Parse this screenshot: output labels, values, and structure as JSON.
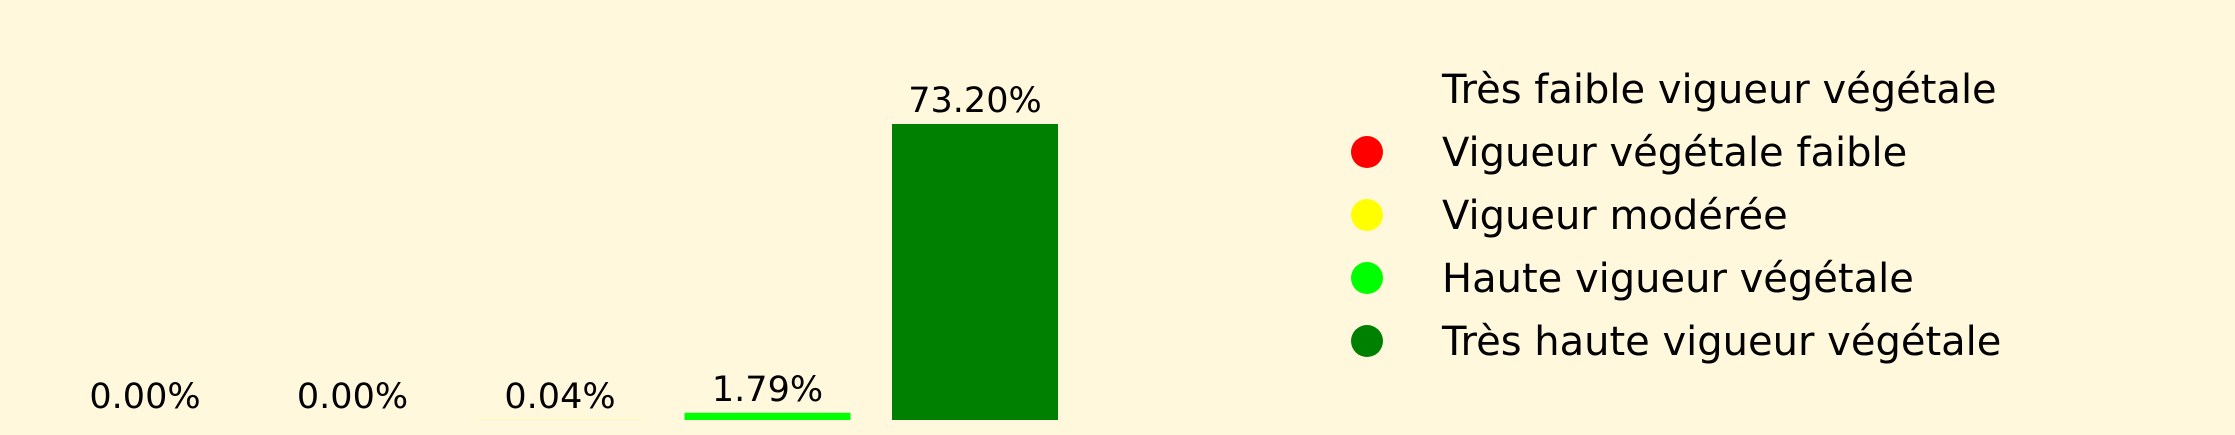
{
  "chart_data": {
    "type": "bar",
    "categories": [
      "Très faible vigueur végétale",
      "Vigueur végétale faible",
      "Vigueur modérée",
      "Haute vigueur végétale",
      "Très haute vigueur végétale"
    ],
    "values": [
      0.0,
      0.0,
      0.04,
      1.79,
      73.2
    ],
    "data_labels": [
      "0.00%",
      "0.00%",
      "0.04%",
      "1.79%",
      "73.20%"
    ],
    "colors": [
      "#fff8dc",
      "#ff0000",
      "#ffff00",
      "#00ff00",
      "#008000"
    ],
    "ylim": [
      0,
      73.2
    ],
    "axes_visible": false,
    "grid": false,
    "legend": {
      "placement": "right",
      "entries": [
        "Très faible vigueur végétale",
        "Vigueur végétale faible",
        "Vigueur modérée",
        "Haute vigueur végétale",
        "Très haute vigueur végétale"
      ]
    }
  }
}
